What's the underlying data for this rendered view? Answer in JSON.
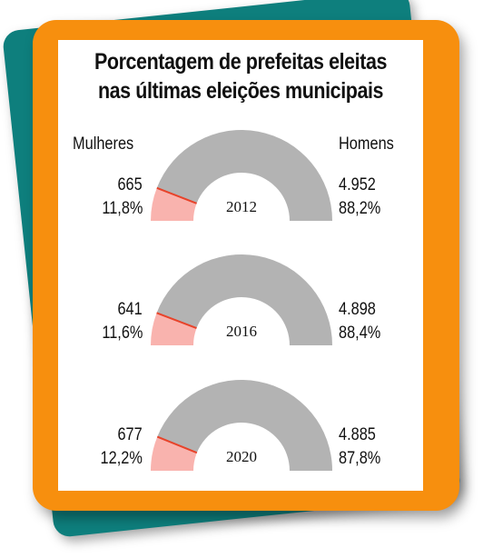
{
  "title_line1": "Porcentagem de prefeitas eleitas",
  "title_line2": "nas últimas eleições municipais",
  "legend": {
    "women": "Mulheres",
    "men": "Homens"
  },
  "colors": {
    "women": "#f9b3ae",
    "men": "#b3b3b3",
    "divider": "#e8432a",
    "frame": "#f78f0e",
    "backcard": "#0e7f7d"
  },
  "chart_data": [
    {
      "type": "pie",
      "year": "2012",
      "women_count": "665",
      "women_pct_label": "11,8%",
      "men_count": "4.952",
      "men_pct_label": "88,2%",
      "women_pct": 11.8,
      "men_pct": 88.2
    },
    {
      "type": "pie",
      "year": "2016",
      "women_count": "641",
      "women_pct_label": "11,6%",
      "men_count": "4.898",
      "men_pct_label": "88,4%",
      "women_pct": 11.6,
      "men_pct": 88.4
    },
    {
      "type": "pie",
      "year": "2020",
      "women_count": "677",
      "women_pct_label": "12,2%",
      "men_count": "4.885",
      "men_pct_label": "87,8%",
      "women_pct": 12.2,
      "men_pct": 87.8
    }
  ]
}
